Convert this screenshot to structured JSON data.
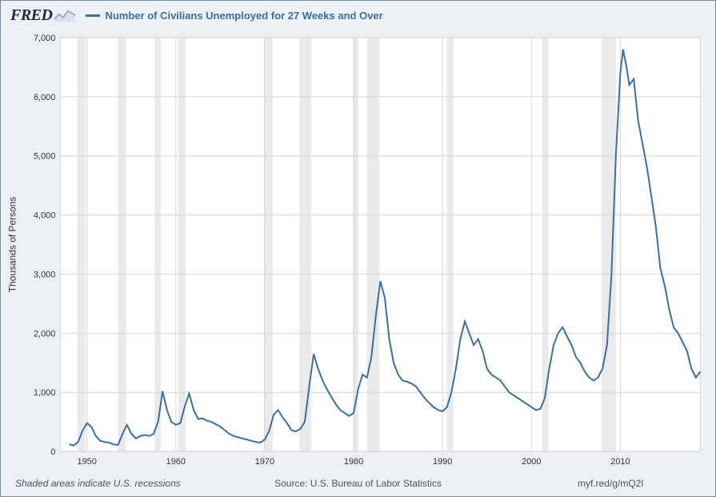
{
  "header": {
    "logo_text": "FRED",
    "series_label": "Number of Civilians Unemployed for 27 Weeks and Over"
  },
  "footer": {
    "shaded_note": "Shaded areas indicate U.S. recessions",
    "source": "Source: U.S. Bureau of Labor Statistics",
    "short_url": "myf.red/g/mQ2l"
  },
  "chart": {
    "type": "line",
    "background_color": "#ffffff",
    "frame_bg": "#eef1f4",
    "grid_color": "#d6d6d6",
    "series_color": "#3b6fa1",
    "recession_color": "#d9d9d9",
    "xlim": [
      1947,
      2019
    ],
    "ylim": [
      0,
      7000
    ],
    "ytick_step": 1000,
    "xtick_step": 10,
    "xtick_start": 1950,
    "ylabel": "Thousands of Persons",
    "label_fontsize": 12,
    "tick_fontsize": 11,
    "line_width": 2,
    "recessions": [
      [
        1948.9,
        1949.8
      ],
      [
        1953.5,
        1954.4
      ],
      [
        1957.6,
        1958.3
      ],
      [
        1960.3,
        1961.1
      ],
      [
        1969.9,
        1970.9
      ],
      [
        1973.9,
        1975.2
      ],
      [
        1980.0,
        1980.5
      ],
      [
        1981.5,
        1982.9
      ],
      [
        1990.5,
        1991.2
      ],
      [
        2001.2,
        2001.9
      ],
      [
        2007.9,
        2009.5
      ]
    ],
    "series": [
      [
        1948.0,
        120
      ],
      [
        1948.5,
        100
      ],
      [
        1949.0,
        160
      ],
      [
        1949.5,
        350
      ],
      [
        1950.0,
        480
      ],
      [
        1950.5,
        420
      ],
      [
        1951.0,
        260
      ],
      [
        1951.5,
        180
      ],
      [
        1952.0,
        160
      ],
      [
        1952.5,
        150
      ],
      [
        1953.0,
        120
      ],
      [
        1953.5,
        110
      ],
      [
        1954.0,
        300
      ],
      [
        1954.5,
        450
      ],
      [
        1955.0,
        300
      ],
      [
        1955.5,
        220
      ],
      [
        1956.0,
        260
      ],
      [
        1956.5,
        280
      ],
      [
        1957.0,
        260
      ],
      [
        1957.5,
        300
      ],
      [
        1958.0,
        500
      ],
      [
        1958.5,
        1020
      ],
      [
        1959.0,
        700
      ],
      [
        1959.5,
        500
      ],
      [
        1960.0,
        450
      ],
      [
        1960.5,
        480
      ],
      [
        1961.0,
        760
      ],
      [
        1961.5,
        980
      ],
      [
        1962.0,
        700
      ],
      [
        1962.5,
        550
      ],
      [
        1963.0,
        560
      ],
      [
        1963.5,
        520
      ],
      [
        1964.0,
        500
      ],
      [
        1964.5,
        460
      ],
      [
        1965.0,
        420
      ],
      [
        1965.5,
        360
      ],
      [
        1966.0,
        300
      ],
      [
        1966.5,
        260
      ],
      [
        1967.0,
        240
      ],
      [
        1967.5,
        220
      ],
      [
        1968.0,
        200
      ],
      [
        1968.5,
        180
      ],
      [
        1969.0,
        160
      ],
      [
        1969.5,
        150
      ],
      [
        1970.0,
        200
      ],
      [
        1970.5,
        350
      ],
      [
        1971.0,
        620
      ],
      [
        1971.5,
        700
      ],
      [
        1972.0,
        580
      ],
      [
        1972.5,
        480
      ],
      [
        1973.0,
        360
      ],
      [
        1973.5,
        340
      ],
      [
        1974.0,
        380
      ],
      [
        1974.5,
        500
      ],
      [
        1975.0,
        1100
      ],
      [
        1975.5,
        1650
      ],
      [
        1976.0,
        1400
      ],
      [
        1976.5,
        1200
      ],
      [
        1977.0,
        1050
      ],
      [
        1977.5,
        920
      ],
      [
        1978.0,
        800
      ],
      [
        1978.5,
        700
      ],
      [
        1979.0,
        650
      ],
      [
        1979.5,
        600
      ],
      [
        1980.0,
        650
      ],
      [
        1980.5,
        1050
      ],
      [
        1981.0,
        1300
      ],
      [
        1981.5,
        1250
      ],
      [
        1982.0,
        1600
      ],
      [
        1982.5,
        2300
      ],
      [
        1983.0,
        2880
      ],
      [
        1983.5,
        2600
      ],
      [
        1984.0,
        1900
      ],
      [
        1984.5,
        1500
      ],
      [
        1985.0,
        1300
      ],
      [
        1985.5,
        1200
      ],
      [
        1986.0,
        1180
      ],
      [
        1986.5,
        1150
      ],
      [
        1987.0,
        1100
      ],
      [
        1987.5,
        1000
      ],
      [
        1988.0,
        900
      ],
      [
        1988.5,
        820
      ],
      [
        1989.0,
        750
      ],
      [
        1989.5,
        700
      ],
      [
        1990.0,
        680
      ],
      [
        1990.5,
        750
      ],
      [
        1991.0,
        1000
      ],
      [
        1991.5,
        1400
      ],
      [
        1992.0,
        1900
      ],
      [
        1992.5,
        2200
      ],
      [
        1993.0,
        2000
      ],
      [
        1993.5,
        1800
      ],
      [
        1994.0,
        1900
      ],
      [
        1994.5,
        1700
      ],
      [
        1995.0,
        1400
      ],
      [
        1995.5,
        1300
      ],
      [
        1996.0,
        1250
      ],
      [
        1996.5,
        1200
      ],
      [
        1997.0,
        1100
      ],
      [
        1997.5,
        1000
      ],
      [
        1998.0,
        950
      ],
      [
        1998.5,
        900
      ],
      [
        1999.0,
        850
      ],
      [
        1999.5,
        800
      ],
      [
        2000.0,
        750
      ],
      [
        2000.5,
        700
      ],
      [
        2001.0,
        720
      ],
      [
        2001.5,
        900
      ],
      [
        2002.0,
        1400
      ],
      [
        2002.5,
        1800
      ],
      [
        2003.0,
        2000
      ],
      [
        2003.5,
        2100
      ],
      [
        2004.0,
        1950
      ],
      [
        2004.5,
        1800
      ],
      [
        2005.0,
        1600
      ],
      [
        2005.5,
        1500
      ],
      [
        2006.0,
        1350
      ],
      [
        2006.5,
        1250
      ],
      [
        2007.0,
        1200
      ],
      [
        2007.5,
        1250
      ],
      [
        2008.0,
        1400
      ],
      [
        2008.5,
        1800
      ],
      [
        2009.0,
        3000
      ],
      [
        2009.5,
        5000
      ],
      [
        2010.0,
        6400
      ],
      [
        2010.3,
        6800
      ],
      [
        2010.7,
        6500
      ],
      [
        2011.0,
        6200
      ],
      [
        2011.5,
        6300
      ],
      [
        2012.0,
        5600
      ],
      [
        2012.5,
        5200
      ],
      [
        2013.0,
        4800
      ],
      [
        2013.5,
        4300
      ],
      [
        2014.0,
        3800
      ],
      [
        2014.5,
        3100
      ],
      [
        2015.0,
        2800
      ],
      [
        2015.5,
        2400
      ],
      [
        2016.0,
        2100
      ],
      [
        2016.5,
        2000
      ],
      [
        2017.0,
        1850
      ],
      [
        2017.5,
        1700
      ],
      [
        2018.0,
        1400
      ],
      [
        2018.5,
        1250
      ],
      [
        2019.0,
        1350
      ]
    ]
  }
}
